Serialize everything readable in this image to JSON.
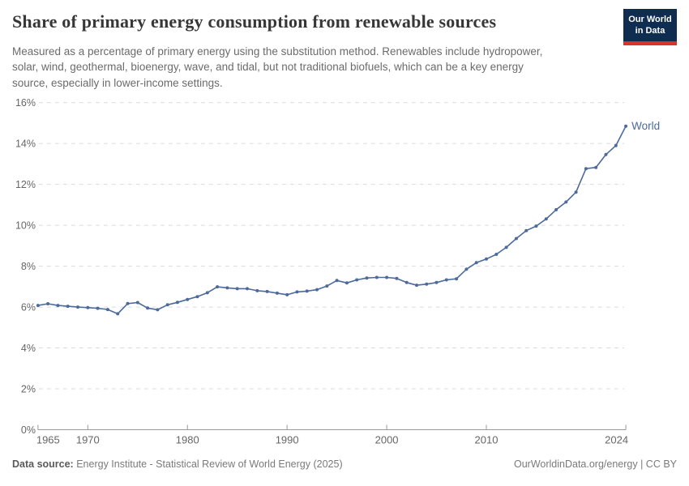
{
  "header": {
    "title": "Share of primary energy consumption from renewable sources",
    "logo": {
      "line1": "Our World",
      "line2": "in Data"
    },
    "subtitle_lines": [
      "Measured as a percentage of primary energy using the substitution method. Renewables include hydropower,",
      "solar, wind, geothermal, bioenergy, wave, and tidal, but not traditional biofuels, which can be a key energy",
      "source, especially in lower-income settings."
    ]
  },
  "chart_data": {
    "type": "line",
    "title": "Share of primary energy consumption from renewable sources",
    "xlabel": "",
    "ylabel": "",
    "xlim": [
      1965,
      2024
    ],
    "ylim": [
      0,
      16
    ],
    "grid": "dashed-horizontal",
    "legend_position": "end-of-line-label",
    "xtick_values": [
      1965,
      1970,
      1980,
      1990,
      2000,
      2010,
      2024
    ],
    "xtick_labels": [
      "1965",
      "1970",
      "1980",
      "1990",
      "2000",
      "2010",
      "2024"
    ],
    "ytick_values": [
      0,
      2,
      4,
      6,
      8,
      10,
      12,
      14,
      16
    ],
    "ytick_labels": [
      "0%",
      "2%",
      "4%",
      "6%",
      "8%",
      "10%",
      "12%",
      "14%",
      "16%"
    ],
    "series": [
      {
        "name": "World",
        "color": "#4c6a9c",
        "points": [
          [
            1965,
            6.08
          ],
          [
            1966,
            6.16
          ],
          [
            1967,
            6.08
          ],
          [
            1968,
            6.04
          ],
          [
            1969,
            6.0
          ],
          [
            1970,
            5.97
          ],
          [
            1971,
            5.94
          ],
          [
            1972,
            5.88
          ],
          [
            1973,
            5.67
          ],
          [
            1974,
            6.17
          ],
          [
            1975,
            6.22
          ],
          [
            1976,
            5.95
          ],
          [
            1977,
            5.87
          ],
          [
            1978,
            6.11
          ],
          [
            1979,
            6.23
          ],
          [
            1980,
            6.37
          ],
          [
            1981,
            6.51
          ],
          [
            1982,
            6.7
          ],
          [
            1983,
            6.99
          ],
          [
            1984,
            6.94
          ],
          [
            1985,
            6.9
          ],
          [
            1986,
            6.9
          ],
          [
            1987,
            6.8
          ],
          [
            1988,
            6.76
          ],
          [
            1989,
            6.68
          ],
          [
            1990,
            6.6
          ],
          [
            1991,
            6.74
          ],
          [
            1992,
            6.78
          ],
          [
            1993,
            6.85
          ],
          [
            1994,
            7.03
          ],
          [
            1995,
            7.3
          ],
          [
            1996,
            7.18
          ],
          [
            1997,
            7.33
          ],
          [
            1998,
            7.42
          ],
          [
            1999,
            7.45
          ],
          [
            2000,
            7.45
          ],
          [
            2001,
            7.4
          ],
          [
            2002,
            7.2
          ],
          [
            2003,
            7.07
          ],
          [
            2004,
            7.12
          ],
          [
            2005,
            7.2
          ],
          [
            2006,
            7.33
          ],
          [
            2007,
            7.38
          ],
          [
            2008,
            7.85
          ],
          [
            2009,
            8.17
          ],
          [
            2010,
            8.35
          ],
          [
            2011,
            8.58
          ],
          [
            2012,
            8.92
          ],
          [
            2013,
            9.35
          ],
          [
            2014,
            9.74
          ],
          [
            2015,
            9.96
          ],
          [
            2016,
            10.31
          ],
          [
            2017,
            10.76
          ],
          [
            2018,
            11.14
          ],
          [
            2019,
            11.62
          ],
          [
            2020,
            12.77
          ],
          [
            2021,
            12.83
          ],
          [
            2022,
            13.46
          ],
          [
            2023,
            13.9
          ],
          [
            2024,
            14.85
          ]
        ]
      }
    ]
  },
  "footer": {
    "source_label": "Data source:",
    "source_text": "Energy Institute - Statistical Review of World Energy (2025)",
    "link_text": "OurWorldinData.org/energy | CC BY"
  },
  "colors": {
    "accent": "#4c6a9c",
    "logo_bg": "#0f2d51",
    "logo_red": "#d7352c",
    "gridline": "#dbdbdb",
    "axis": "#999999",
    "tick_label": "#666666"
  }
}
